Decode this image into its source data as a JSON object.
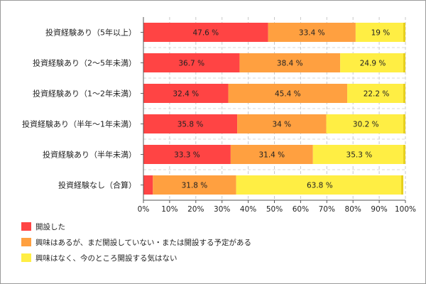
{
  "chart_data": {
    "type": "bar",
    "orientation": "horizontal",
    "stacked": true,
    "categories": [
      "投資経験あり（5年以上）",
      "投資経験あり（2～5年未満）",
      "投資経験あり（1～2年未満）",
      "投資経験あり（半年～1年未満）",
      "投資経験あり（半年未満）",
      "投資経験なし（合算）"
    ],
    "series": [
      {
        "name": "開設した",
        "color": "#ff4444",
        "values": [
          47.6,
          36.7,
          32.4,
          35.8,
          33.3,
          3.6
        ]
      },
      {
        "name": "興味はあるが、まだ開設していない・または開設する予定がある",
        "color": "#ffa040",
        "values": [
          33.4,
          38.4,
          45.4,
          34,
          31.4,
          31.8
        ]
      },
      {
        "name": "興味はなく、今のところ開設する気はない",
        "color": "#ffee44",
        "values": [
          19,
          24.9,
          22.2,
          30.2,
          35.3,
          63.8
        ]
      }
    ],
    "data_labels": [
      [
        "47.6 %",
        "33.4 %",
        "19 %"
      ],
      [
        "36.7 %",
        "38.4 %",
        "24.9 %"
      ],
      [
        "32.4 %",
        "45.4 %",
        "22.2 %"
      ],
      [
        "35.8 %",
        "34 %",
        "30.2 %"
      ],
      [
        "33.3 %",
        "31.4 %",
        "35.3 %"
      ],
      [
        "",
        "31.8 %",
        "63.8 %"
      ]
    ],
    "x_ticks": [
      "0%",
      "10%",
      "20%",
      "30%",
      "40%",
      "50%",
      "60%",
      "70%",
      "80%",
      "90%",
      "100%"
    ],
    "xlim": [
      0,
      100
    ],
    "title": "",
    "xlabel": "",
    "ylabel": "",
    "grid": "vertical dashed",
    "legend_position": "bottom-left"
  },
  "legend": {
    "items": [
      {
        "label": "開設した",
        "color": "#ff4444"
      },
      {
        "label": "興味はあるが、まだ開設していない・または開設する予定がある",
        "color": "#ffa040"
      },
      {
        "label": "興味はなく、今のところ開設する気はない",
        "color": "#ffee44"
      }
    ]
  }
}
